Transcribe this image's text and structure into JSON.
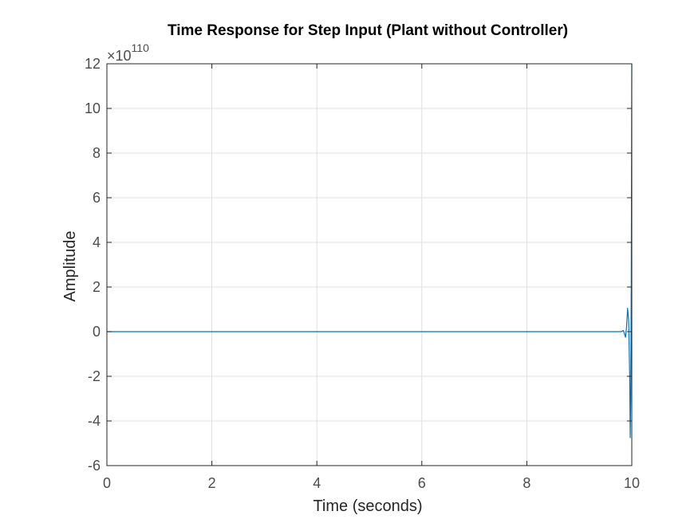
{
  "chart_data": {
    "type": "line",
    "title": "Time Response for Step Input (Plant without Controller)",
    "xlabel": "Time (seconds)",
    "ylabel": "Amplitude",
    "exponent_multiplier": "×10",
    "exponent_power": "110",
    "xlim": [
      0,
      10
    ],
    "ylim": [
      -6,
      12
    ],
    "xticks": [
      0,
      2,
      4,
      6,
      8,
      10
    ],
    "yticks": [
      -6,
      -4,
      -2,
      0,
      2,
      4,
      6,
      8,
      10,
      12
    ],
    "xtick_labels": [
      "0",
      "2",
      "4",
      "6",
      "8",
      "10"
    ],
    "ytick_labels": [
      "-6",
      "-4",
      "-2",
      "0",
      "2",
      "4",
      "6",
      "8",
      "10",
      "12"
    ],
    "grid": true,
    "series": [
      {
        "color": "#0072BD",
        "x": [
          0,
          9.7,
          9.8,
          9.82,
          9.84,
          9.86,
          9.88,
          9.9,
          9.92,
          9.94,
          9.96,
          9.97,
          9.98,
          9.99,
          10.0
        ],
        "y": [
          0,
          0,
          0,
          0.03,
          0.05,
          -0.1,
          -0.25,
          0.2,
          1.05,
          0.5,
          -2.0,
          -4.75,
          -3.0,
          2.0,
          12.0
        ]
      }
    ]
  }
}
